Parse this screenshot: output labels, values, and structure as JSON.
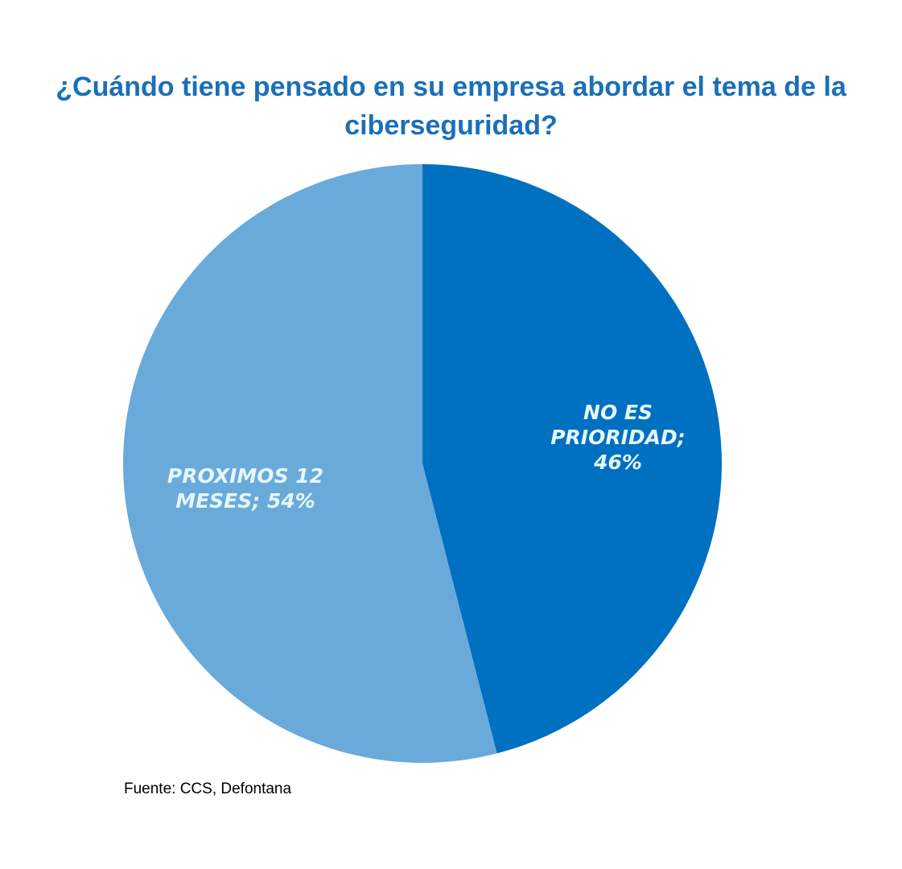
{
  "chart_data": {
    "type": "pie",
    "title_lines": [
      "¿Cuándo tiene pensado en su empresa abordar el tema de la",
      "ciberseguridad?"
    ],
    "slices": [
      {
        "category": "NO ES PRIORIDAD",
        "value": 46,
        "label_lines": [
          "NO ES",
          "PRIORIDAD;",
          "46%"
        ],
        "color": "#0070c0"
      },
      {
        "category": "PROXIMOS 12 MESES",
        "value": 54,
        "label_lines": [
          "PROXIMOS 12",
          "MESES; 54%"
        ],
        "color": "#6aaadb"
      }
    ],
    "start_angle": "12 o'clock",
    "direction": "clockwise"
  },
  "source": "Fuente: CCS, Defontana"
}
